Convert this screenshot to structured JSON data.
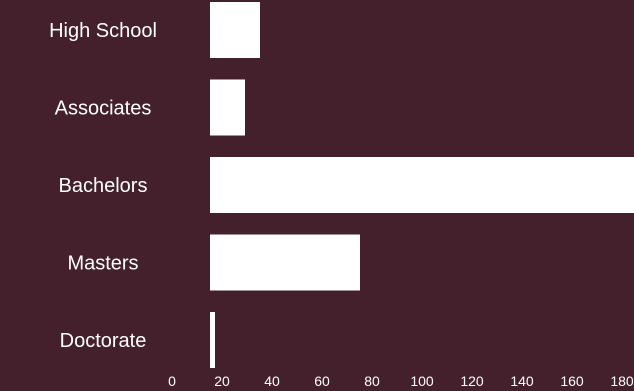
{
  "colors": {
    "background": "#44202d",
    "bar": "#ffffff",
    "text": "#ffffff"
  },
  "chart_data": {
    "type": "bar",
    "orientation": "horizontal",
    "title": "",
    "xlabel": "",
    "ylabel": "",
    "categories": [
      "High School",
      "Associates",
      "Bachelors",
      "Masters",
      "Doctorate"
    ],
    "values": [
      40,
      34,
      190,
      80,
      22
    ],
    "x_ticks": [
      0,
      20,
      40,
      60,
      80,
      100,
      120,
      140,
      160,
      180
    ],
    "xlim": [
      0,
      190
    ],
    "grid": false,
    "legend": "none"
  }
}
